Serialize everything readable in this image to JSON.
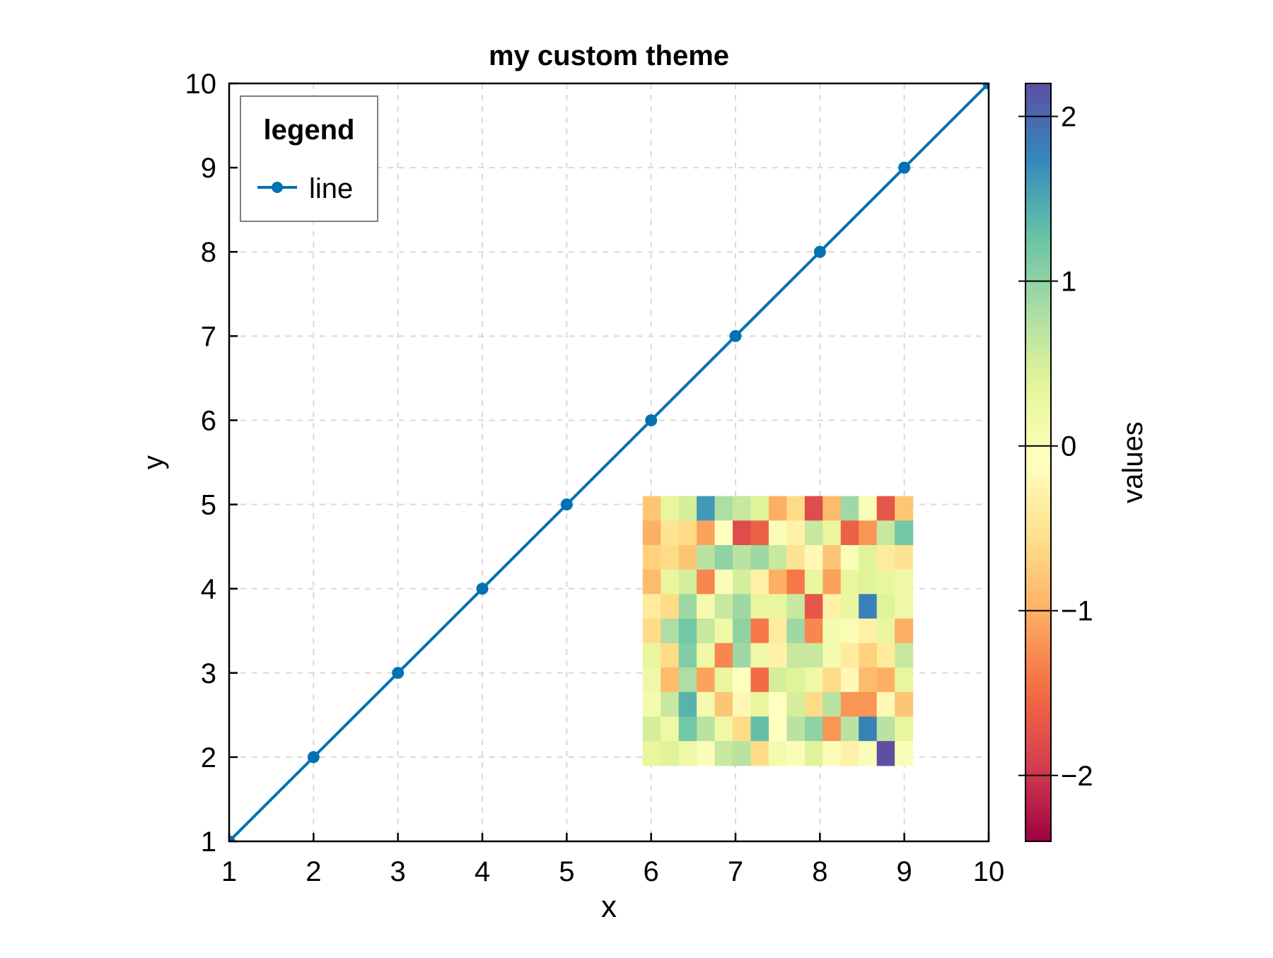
{
  "chart_data": {
    "type": "line",
    "title": "my custom theme",
    "xlabel": "x",
    "ylabel": "y",
    "xlim": [
      1,
      10
    ],
    "ylim": [
      1,
      10
    ],
    "xticks": [
      "1",
      "2",
      "3",
      "4",
      "5",
      "6",
      "7",
      "8",
      "9",
      "10"
    ],
    "yticks": [
      "1",
      "2",
      "3",
      "4",
      "5",
      "6",
      "7",
      "8",
      "9",
      "10"
    ],
    "grid": true,
    "legend": {
      "title": "legend",
      "placement": "top-left",
      "entries": [
        "line"
      ]
    },
    "series": [
      {
        "name": "line",
        "color": "#0072b2",
        "x": [
          1,
          2,
          3,
          4,
          5,
          6,
          7,
          8,
          9,
          10
        ],
        "y": [
          1,
          2,
          3,
          4,
          5,
          6,
          7,
          8,
          9,
          10
        ]
      }
    ],
    "heatmap": {
      "x_range": [
        5.9,
        9.1
      ],
      "y_range": [
        1.9,
        5.1
      ],
      "colormap": "Spectral",
      "values": [
        [
          -0.8,
          0.3,
          0.5,
          1.6,
          0.8,
          0.6,
          0.4,
          -1.0,
          -0.6,
          -1.8,
          -0.9,
          0.9,
          0.0,
          -1.7,
          -0.8
        ],
        [
          -1.0,
          -0.5,
          -0.6,
          -1.1,
          -0.1,
          -1.8,
          -1.6,
          0.0,
          -0.3,
          0.6,
          0.3,
          -1.6,
          -1.2,
          0.6,
          1.2
        ],
        [
          -0.7,
          -0.6,
          -0.8,
          0.7,
          1.0,
          0.7,
          0.9,
          0.6,
          -0.5,
          -0.2,
          -0.8,
          0.0,
          0.4,
          -0.4,
          -0.5
        ],
        [
          -0.9,
          0.3,
          0.5,
          -1.3,
          0.0,
          0.5,
          -0.3,
          -1.0,
          -1.4,
          0.3,
          -1.1,
          0.3,
          0.4,
          0.3,
          0.2
        ],
        [
          -0.4,
          -0.6,
          0.9,
          0.1,
          0.6,
          0.9,
          0.3,
          0.3,
          0.6,
          -1.7,
          -0.3,
          0.3,
          1.8,
          0.4,
          0.2
        ],
        [
          -0.6,
          0.8,
          1.2,
          0.6,
          0.2,
          1.0,
          -1.4,
          -0.4,
          0.9,
          -1.3,
          0.1,
          0.0,
          -0.3,
          0.3,
          -1.0
        ],
        [
          0.3,
          -0.6,
          1.1,
          0.2,
          -1.3,
          0.9,
          0.2,
          -0.3,
          0.6,
          0.6,
          0.1,
          -0.4,
          -0.7,
          -0.4,
          0.6
        ],
        [
          0.2,
          -0.9,
          0.8,
          -1.1,
          0.3,
          -0.1,
          -1.5,
          0.5,
          0.4,
          0.2,
          -0.6,
          -0.2,
          -0.9,
          -1.0,
          0.3
        ],
        [
          0.1,
          0.6,
          1.4,
          0.1,
          -0.8,
          -0.2,
          0.3,
          -0.1,
          0.5,
          -0.6,
          0.7,
          -1.2,
          -1.2,
          -0.2,
          -0.8
        ],
        [
          0.5,
          0.2,
          1.2,
          0.7,
          0.2,
          -0.6,
          1.3,
          -0.1,
          0.7,
          1.0,
          -1.2,
          0.7,
          1.8,
          0.7,
          0.3
        ],
        [
          0.3,
          0.4,
          0.2,
          0.0,
          0.6,
          0.7,
          -0.6,
          0.1,
          0.0,
          0.4,
          0.0,
          -0.3,
          0.0,
          2.2,
          0.0
        ]
      ]
    }
  },
  "colorbar": {
    "label": "values",
    "range": [
      -2.4,
      2.2
    ],
    "ticks": [
      "2",
      "1",
      "0",
      "−1",
      "−2"
    ],
    "tick_values": [
      2,
      1,
      0,
      -1,
      -2
    ]
  }
}
